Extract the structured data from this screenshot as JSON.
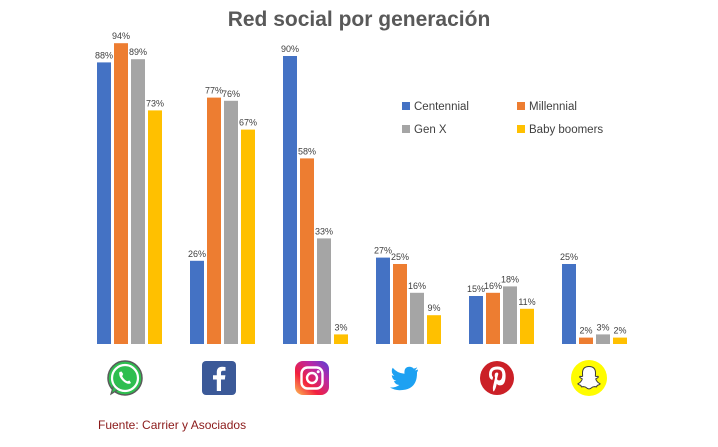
{
  "chart_data": {
    "type": "bar",
    "title": "Red social por generación",
    "categories": [
      "WhatsApp",
      "Facebook",
      "Instagram",
      "Twitter",
      "Pinterest",
      "Snapchat"
    ],
    "value_suffix": "%",
    "ylim": [
      0,
      100
    ],
    "grid": false,
    "legend_position": "right, upper middle",
    "series": [
      {
        "name": "Centennial",
        "color": "#4472C4",
        "values": [
          88,
          26,
          90,
          27,
          15,
          25
        ]
      },
      {
        "name": "Millennial",
        "color": "#ED7D31",
        "values": [
          94,
          77,
          58,
          25,
          16,
          2
        ]
      },
      {
        "name": "Gen X",
        "color": "#A5A5A5",
        "values": [
          89,
          76,
          33,
          16,
          18,
          3
        ]
      },
      {
        "name": "Baby boomers",
        "color": "#FFC000",
        "values": [
          73,
          67,
          3,
          9,
          11,
          2
        ]
      }
    ],
    "category_icons": [
      "whatsapp-icon",
      "facebook-icon",
      "instagram-icon",
      "twitter-icon",
      "pinterest-icon",
      "snapchat-icon"
    ]
  },
  "source": "Fuente: Carrier y Asociados"
}
